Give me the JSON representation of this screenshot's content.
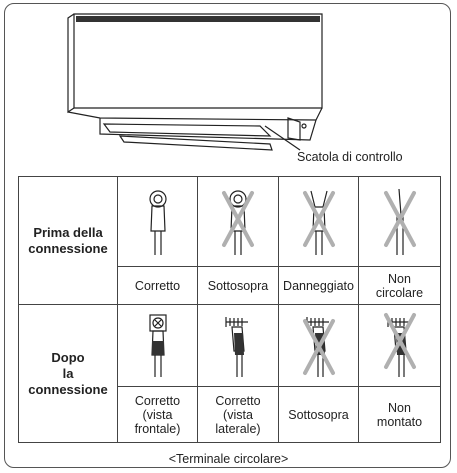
{
  "diagram": {
    "label": "Scatola di controllo"
  },
  "table": {
    "row_headers": [
      "Prima della\nconnessione",
      "Dopo\nla\nconnessione"
    ],
    "rows": [
      [
        "Corretto",
        "Sottosopra",
        "Danneggiato",
        "Non\ncircolare"
      ],
      [
        "Corretto\n(vista\nfrontale)",
        "Corretto\n(vista\nlaterale)",
        "Sottosopra",
        "Non\nmontato"
      ]
    ]
  },
  "caption": "<Terminale circolare>"
}
